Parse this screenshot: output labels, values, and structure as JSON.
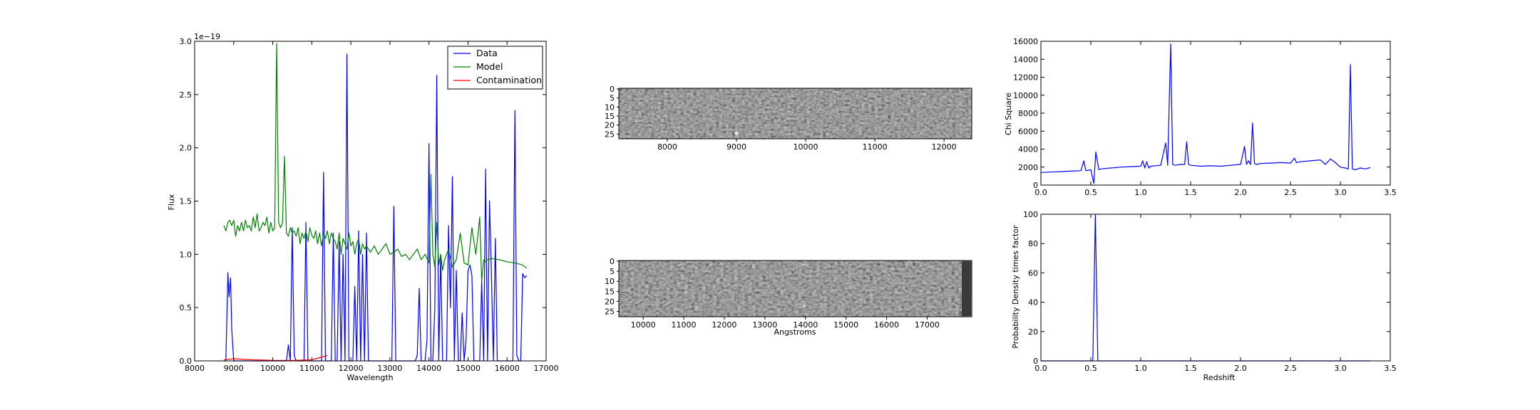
{
  "chart_data": [
    {
      "id": "spectrum",
      "type": "line",
      "xlabel": "Wavelength",
      "ylabel": "Flux",
      "offset_text": "1e−19",
      "xlim": [
        8000,
        17000
      ],
      "ylim": [
        0.0,
        3.0
      ],
      "xticks": [
        "8000",
        "9000",
        "10000",
        "11000",
        "12000",
        "13000",
        "14000",
        "15000",
        "16000",
        "17000"
      ],
      "yticks": [
        "0.0",
        "0.5",
        "1.0",
        "1.5",
        "2.0",
        "2.5",
        "3.0"
      ],
      "grid": false,
      "legend": {
        "position": "top-right",
        "entries": [
          "Data",
          "Model",
          "Contamination"
        ]
      },
      "series": [
        {
          "name": "Data",
          "color": "#0000ff",
          "x": [
            8750,
            8800,
            8850,
            8880,
            8920,
            8950,
            9000,
            9050,
            9100,
            9200,
            9300,
            9400,
            9500,
            9600,
            9700,
            9800,
            9900,
            10000,
            10100,
            10200,
            10250,
            10300,
            10350,
            10400,
            10450,
            10500,
            10550,
            10600,
            10700,
            10750,
            10800,
            10850,
            10900,
            10950,
            11000,
            11050,
            11100,
            11200,
            11250,
            11300,
            11350,
            11400,
            11450,
            11500,
            11550,
            11600,
            11650,
            11700,
            11750,
            11800,
            11850,
            11900,
            11950,
            12000,
            12050,
            12100,
            12150,
            12200,
            12250,
            12300,
            12350,
            12400,
            12450,
            12500,
            12600,
            12700,
            12800,
            12900,
            12950,
            13000,
            13050,
            13100,
            13150,
            13200,
            13300,
            13400,
            13500,
            13550,
            13600,
            13650,
            13700,
            13750,
            13800,
            13850,
            13900,
            13950,
            14000,
            14050,
            14100,
            14150,
            14200,
            14250,
            14300,
            14350,
            14400,
            14450,
            14500,
            14550,
            14600,
            14650,
            14700,
            14750,
            14800,
            14850,
            14900,
            14950,
            15000,
            15050,
            15100,
            15150,
            15200,
            15250,
            15300,
            15350,
            15400,
            15450,
            15500,
            15550,
            15600,
            15650,
            15700,
            15750,
            15800,
            15850,
            15900,
            15950,
            16000,
            16050,
            16100,
            16150,
            16200,
            16250,
            16300,
            16350,
            16400,
            16450,
            16500
          ],
          "y": [
            0.0,
            0.0,
            0.83,
            0.6,
            0.78,
            0.3,
            0.0,
            0.0,
            0.0,
            0.0,
            0.0,
            0.0,
            0.0,
            0.0,
            0.0,
            0.0,
            0.0,
            0.0,
            0.0,
            0.0,
            0.0,
            0.0,
            0.0,
            0.15,
            0.0,
            1.25,
            0.05,
            0.0,
            0.0,
            0.0,
            0.0,
            1.3,
            0.0,
            0.0,
            0.0,
            0.0,
            0.0,
            0.0,
            0.0,
            1.77,
            0.0,
            0.0,
            0.0,
            0.0,
            1.2,
            0.0,
            0.0,
            1.12,
            0.0,
            1.0,
            0.0,
            2.88,
            0.0,
            0.0,
            0.0,
            0.7,
            0.0,
            1.22,
            0.0,
            1.0,
            0.0,
            1.2,
            0.0,
            0.0,
            0.0,
            0.0,
            0.0,
            0.0,
            0.0,
            0.0,
            0.0,
            1.45,
            0.0,
            0.0,
            0.0,
            0.0,
            0.0,
            0.0,
            0.0,
            0.0,
            0.05,
            0.68,
            0.0,
            0.0,
            0.0,
            0.2,
            2.04,
            0.0,
            0.0,
            0.5,
            2.68,
            0.0,
            1.0,
            0.0,
            0.0,
            0.0,
            1.27,
            0.5,
            1.73,
            0.0,
            0.85,
            0.0,
            0.0,
            0.45,
            0.0,
            0.2,
            0.85,
            0.9,
            0.8,
            0.0,
            0.0,
            0.0,
            0.0,
            0.75,
            0.0,
            1.8,
            0.0,
            1.5,
            0.8,
            0.0,
            1.15,
            0.0,
            0.0,
            0.0,
            0.0,
            0.0,
            0.0,
            0.0,
            0.0,
            0.0,
            2.35,
            0.05,
            0.0,
            0.0,
            0.82,
            0.78,
            0.8
          ]
        },
        {
          "name": "Model",
          "color": "#008000",
          "x": [
            8750,
            8800,
            8850,
            8900,
            8950,
            9000,
            9050,
            9100,
            9150,
            9200,
            9250,
            9300,
            9350,
            9400,
            9450,
            9500,
            9550,
            9600,
            9650,
            9700,
            9750,
            9800,
            9850,
            9900,
            9950,
            10000,
            10050,
            10100,
            10150,
            10200,
            10250,
            10300,
            10350,
            10400,
            10450,
            10500,
            10550,
            10600,
            10650,
            10700,
            10750,
            10800,
            10850,
            10900,
            10950,
            11000,
            11050,
            11100,
            11150,
            11200,
            11250,
            11300,
            11350,
            11400,
            11450,
            11500,
            11550,
            11600,
            11650,
            11700,
            11750,
            11800,
            11850,
            11900,
            11950,
            12000,
            12050,
            12100,
            12150,
            12200,
            12250,
            12300,
            12350,
            12400,
            12450,
            12500,
            12600,
            12700,
            12800,
            12900,
            13000,
            13100,
            13200,
            13300,
            13400,
            13500,
            13600,
            13700,
            13800,
            13900,
            14000,
            14050,
            14100,
            14150,
            14200,
            14250,
            14300,
            14350,
            14400,
            14500,
            14600,
            14700,
            14800,
            14900,
            15000,
            15100,
            15200,
            15300,
            15350,
            15400,
            15450,
            15500,
            15600,
            15800,
            16000,
            16200,
            16400,
            16500
          ],
          "y": [
            1.27,
            1.22,
            1.3,
            1.32,
            1.27,
            1.32,
            1.17,
            1.27,
            1.22,
            1.3,
            1.22,
            1.32,
            1.25,
            1.27,
            1.22,
            1.35,
            1.25,
            1.38,
            1.22,
            1.25,
            1.3,
            1.27,
            1.35,
            1.2,
            1.3,
            1.22,
            1.25,
            2.98,
            1.3,
            1.25,
            1.3,
            1.92,
            1.2,
            1.17,
            1.25,
            1.2,
            1.22,
            1.17,
            1.25,
            1.1,
            1.2,
            1.15,
            1.22,
            1.12,
            1.25,
            1.18,
            1.15,
            1.22,
            1.1,
            1.2,
            1.08,
            1.2,
            1.15,
            1.22,
            1.1,
            1.2,
            1.15,
            1.12,
            1.05,
            1.2,
            1.0,
            1.15,
            1.1,
            1.05,
            1.2,
            1.08,
            1.12,
            1.0,
            1.1,
            1.15,
            1.0,
            1.1,
            1.05,
            1.08,
            1.05,
            1.02,
            1.08,
            1.0,
            1.05,
            1.1,
            1.0,
            1.02,
            1.05,
            0.98,
            1.0,
            0.95,
            1.0,
            1.05,
            0.95,
            1.0,
            0.92,
            1.75,
            1.0,
            0.88,
            1.3,
            0.9,
            1.0,
            0.85,
            0.95,
            1.05,
            0.88,
            0.95,
            1.2,
            0.92,
            0.9,
            1.25,
            1.0,
            1.35,
            0.75,
            0.95,
            0.93,
            0.95,
            0.96,
            0.95,
            0.93,
            0.92,
            0.9,
            0.87
          ]
        },
        {
          "name": "Contamination",
          "color": "#ff0000",
          "x": [
            8750,
            9000,
            9500,
            10000,
            10500,
            11000,
            11200,
            11400
          ],
          "y": [
            0.01,
            0.02,
            0.01,
            0.005,
            0.005,
            0.01,
            0.03,
            0.05
          ]
        }
      ]
    },
    {
      "id": "image-2d-top",
      "type": "heatmap",
      "xlim": [
        7300,
        12400
      ],
      "xticks": [
        "8000",
        "9000",
        "10000",
        "11000",
        "12000"
      ],
      "yticks": [
        "0",
        "5",
        "10",
        "15",
        "20",
        "25"
      ],
      "colormap": "gray"
    },
    {
      "id": "image-2d-bottom",
      "type": "heatmap",
      "xlabel": "Angstroms",
      "xlim": [
        9400,
        18100
      ],
      "xticks": [
        "10000",
        "11000",
        "12000",
        "13000",
        "14000",
        "15000",
        "16000",
        "17000"
      ],
      "yticks": [
        "0",
        "5",
        "10",
        "15",
        "20",
        "25"
      ],
      "colormap": "gray"
    },
    {
      "id": "chi-square",
      "type": "line",
      "ylabel": "Chi Square",
      "xlim": [
        0.0,
        3.5
      ],
      "ylim": [
        0,
        16000
      ],
      "xticks": [
        "0.0",
        "0.5",
        "1.0",
        "1.5",
        "2.0",
        "2.5",
        "3.0",
        "3.5"
      ],
      "yticks": [
        "0",
        "2000",
        "4000",
        "6000",
        "8000",
        "10000",
        "12000",
        "14000",
        "16000"
      ],
      "grid": false,
      "series": [
        {
          "color": "#0000ff",
          "x": [
            0.0,
            0.1,
            0.2,
            0.3,
            0.4,
            0.43,
            0.45,
            0.5,
            0.53,
            0.55,
            0.58,
            0.6,
            0.7,
            0.8,
            0.9,
            1.0,
            1.02,
            1.04,
            1.06,
            1.08,
            1.1,
            1.2,
            1.25,
            1.27,
            1.3,
            1.32,
            1.34,
            1.4,
            1.44,
            1.46,
            1.48,
            1.5,
            1.6,
            1.7,
            1.8,
            1.9,
            2.0,
            2.04,
            2.06,
            2.08,
            2.1,
            2.12,
            2.14,
            2.16,
            2.2,
            2.3,
            2.4,
            2.5,
            2.54,
            2.56,
            2.6,
            2.7,
            2.8,
            2.85,
            2.9,
            2.95,
            3.0,
            3.05,
            3.08,
            3.1,
            3.12,
            3.15,
            3.2,
            3.25,
            3.3
          ],
          "y": [
            1400,
            1450,
            1500,
            1550,
            1600,
            2700,
            1600,
            1700,
            200,
            3700,
            1700,
            1800,
            1900,
            2000,
            2050,
            2100,
            2700,
            1900,
            2600,
            1900,
            2100,
            2200,
            4700,
            2200,
            15700,
            2300,
            2200,
            2300,
            2300,
            4800,
            2300,
            2200,
            2100,
            2150,
            2100,
            2200,
            2300,
            4300,
            2300,
            2700,
            2300,
            6900,
            2400,
            2300,
            2400,
            2450,
            2500,
            2450,
            3000,
            2500,
            2600,
            2700,
            2800,
            2300,
            2900,
            2500,
            2000,
            1900,
            1800,
            13400,
            1800,
            1700,
            1900,
            1800,
            1950
          ]
        }
      ]
    },
    {
      "id": "probability-density",
      "type": "line",
      "xlabel": "Redshift",
      "ylabel": "Probability Density times factor",
      "xlim": [
        0.0,
        3.5
      ],
      "ylim": [
        0,
        100
      ],
      "xticks": [
        "0.0",
        "0.5",
        "1.0",
        "1.5",
        "2.0",
        "2.5",
        "3.0",
        "3.5"
      ],
      "yticks": [
        "0",
        "20",
        "40",
        "60",
        "80",
        "100"
      ],
      "grid": false,
      "series": [
        {
          "color": "#0000ff",
          "x": [
            0.0,
            0.52,
            0.535,
            0.545,
            0.555,
            0.57,
            3.3
          ],
          "y": [
            0,
            0,
            60,
            100,
            60,
            0,
            0
          ]
        }
      ]
    }
  ]
}
